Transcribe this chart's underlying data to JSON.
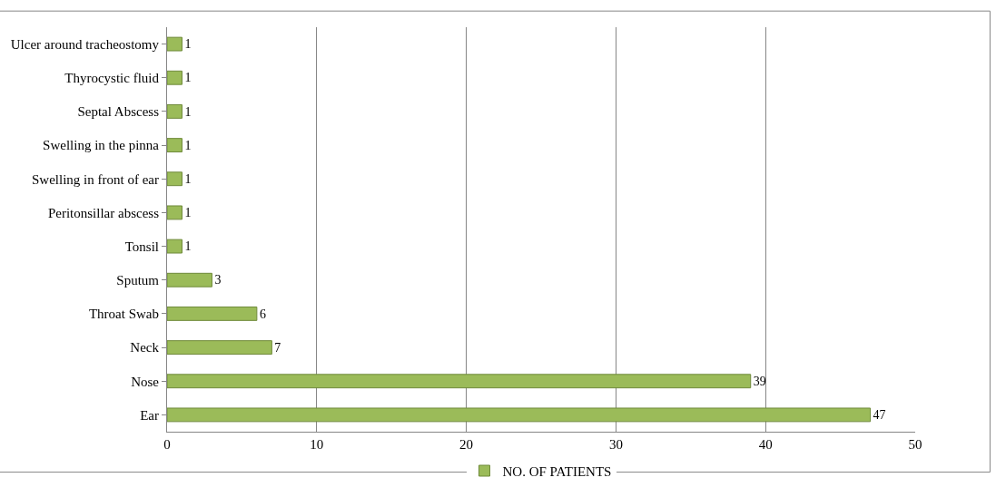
{
  "chart_data": {
    "type": "bar",
    "orientation": "horizontal",
    "categories": [
      "Ulcer around tracheostomy",
      "Thyrocystic fluid",
      "Septal Abscess",
      "Swelling in the pinna",
      "Swelling in front of ear",
      "Peritonsillar abscess",
      "Tonsil",
      "Sputum",
      "Throat Swab",
      "Neck",
      "Nose",
      "Ear"
    ],
    "series": [
      {
        "name": "NO. OF PATIENTS",
        "color": "#9bbb59",
        "values": [
          1,
          1,
          1,
          1,
          1,
          1,
          1,
          3,
          6,
          7,
          39,
          47
        ]
      }
    ],
    "xlim": [
      0,
      50
    ],
    "xticks": [
      0,
      10,
      20,
      30,
      40,
      50
    ],
    "grid": "x",
    "legend": "bottom",
    "data_labels": true
  }
}
